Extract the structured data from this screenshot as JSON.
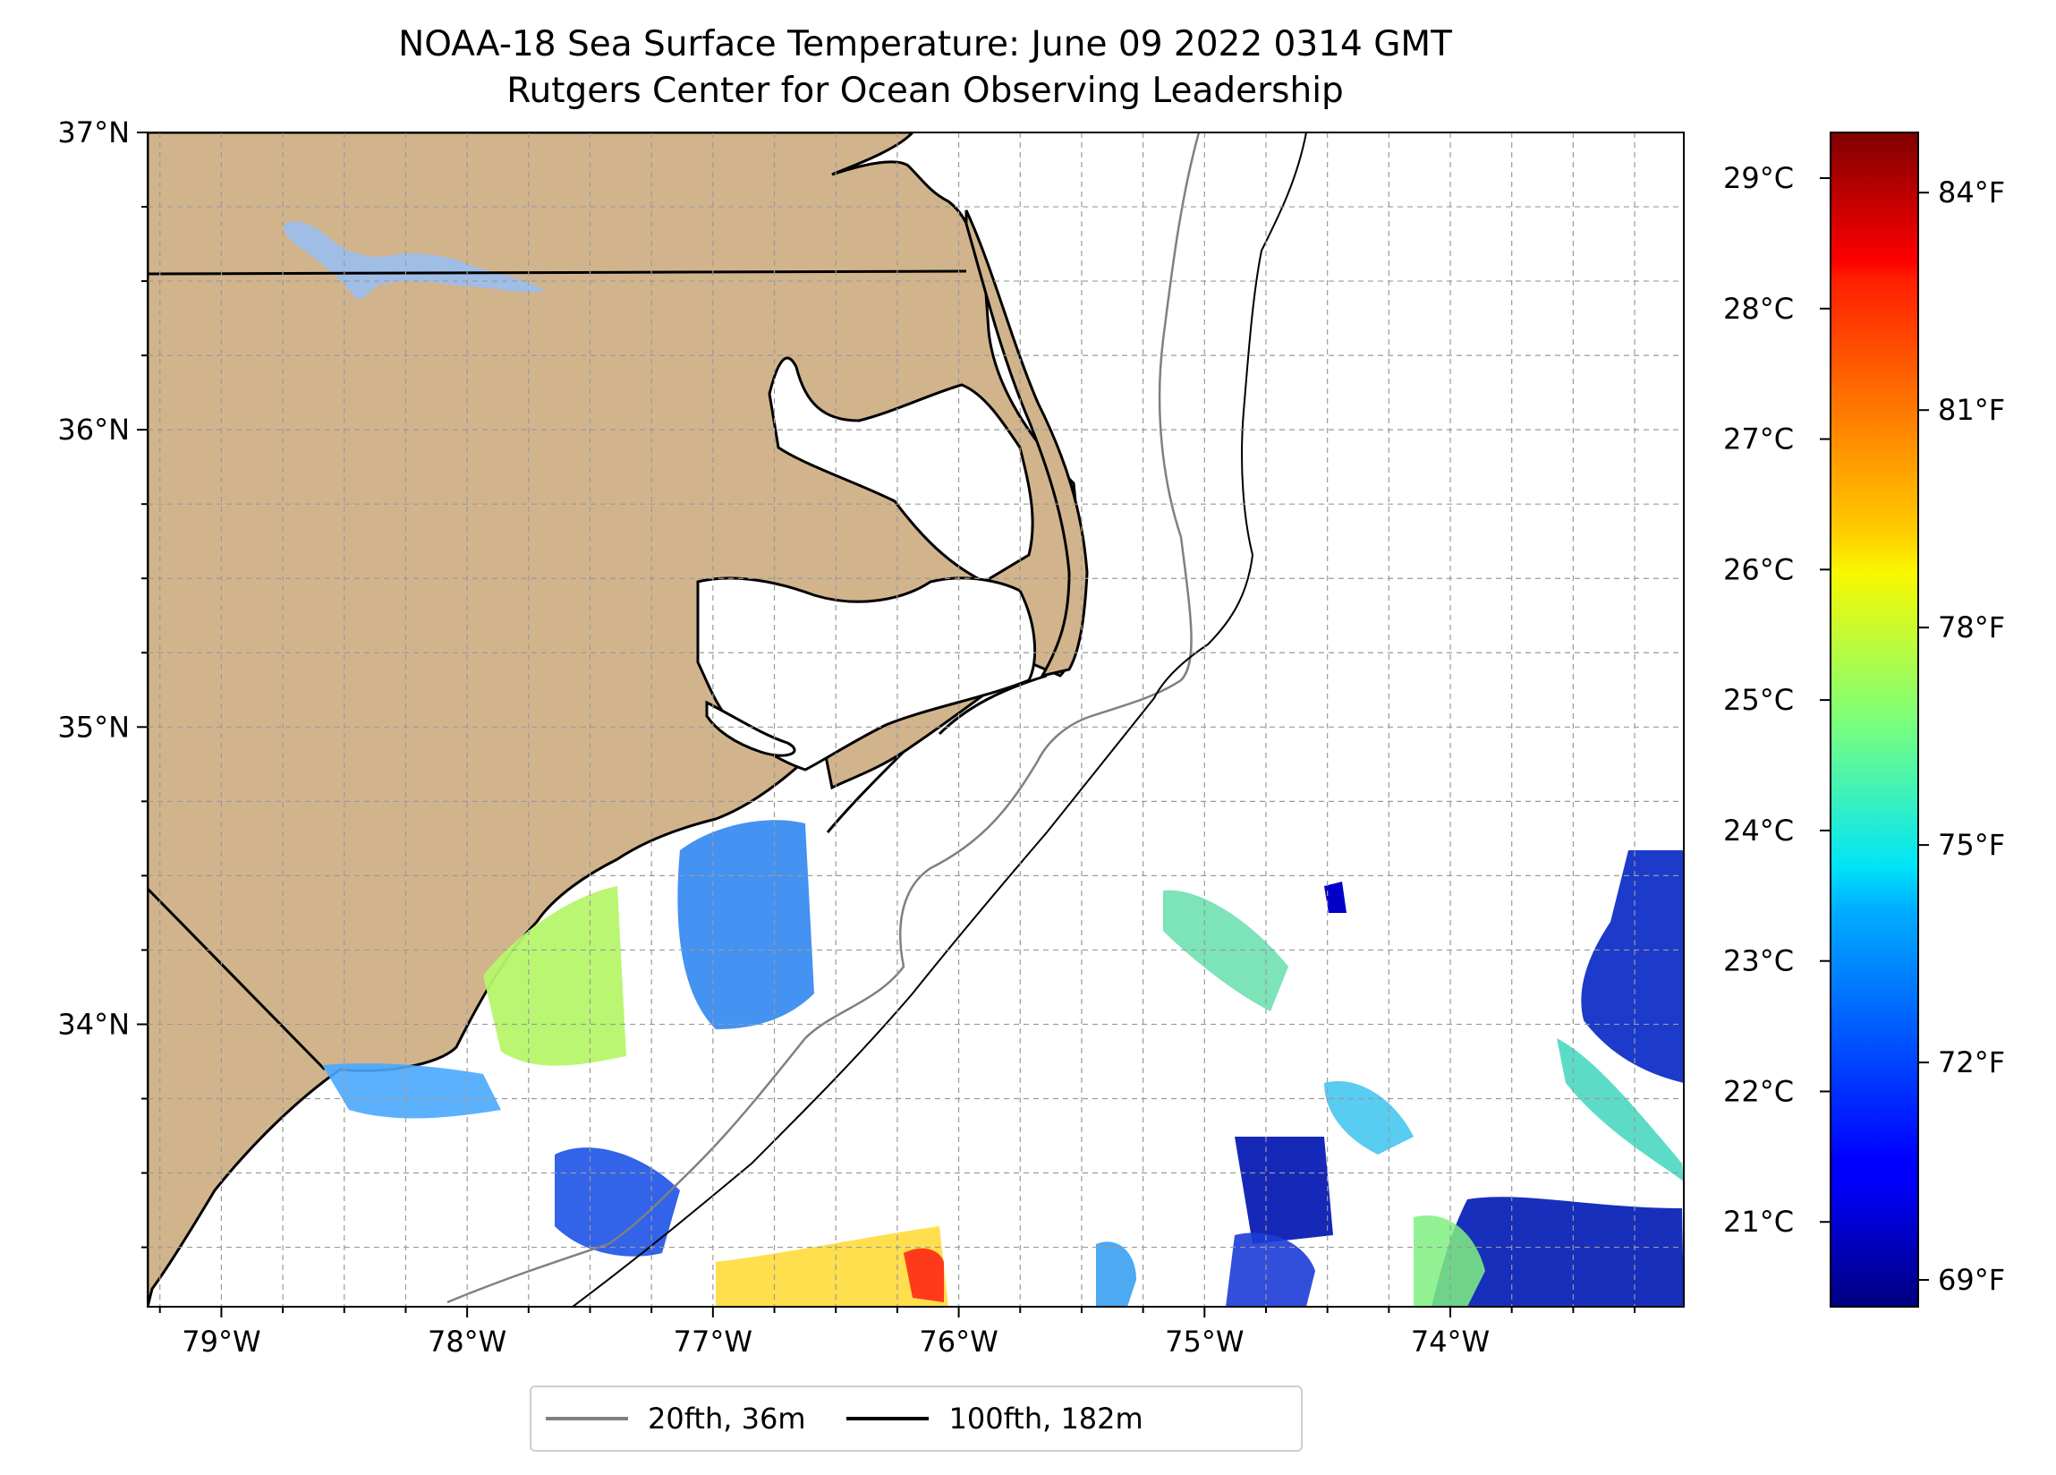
{
  "title": "NOAA-18 Sea Surface Temperature: June 09 2022 0314 GMT",
  "subtitle": "Rutgers Center for Ocean Observing Leadership",
  "map": {
    "lon_range": [
      -79.3,
      -73.05
    ],
    "lat_range": [
      33.05,
      37.0
    ],
    "lon_ticks": [
      "79°W",
      "78°W",
      "77°W",
      "76°W",
      "75°W",
      "74°W"
    ],
    "lat_ticks": [
      "37°N",
      "36°N",
      "35°N",
      "34°N"
    ],
    "land_color": "#d2b48c",
    "lake_color": "#a0bde6",
    "gridlines": true
  },
  "colorbar": {
    "colormap": "jet",
    "celsius_ticks": [
      "29°C",
      "28°C",
      "27°C",
      "26°C",
      "25°C",
      "24°C",
      "23°C",
      "22°C",
      "21°C"
    ],
    "fahrenheit_ticks": [
      "84°F",
      "81°F",
      "78°F",
      "75°F",
      "72°F",
      "69°F"
    ]
  },
  "legend": {
    "placement": "bottom-center",
    "items": [
      {
        "label": "20fth, 36m",
        "color": "#808080"
      },
      {
        "label": "100fth, 182m",
        "color": "#000000"
      }
    ]
  }
}
